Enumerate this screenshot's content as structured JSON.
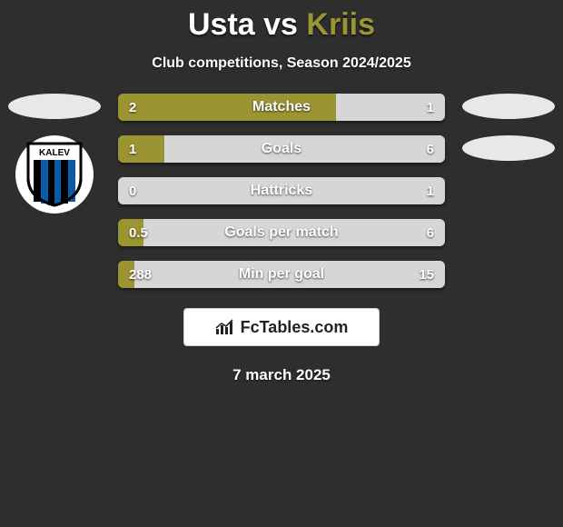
{
  "title": {
    "player1": "Usta",
    "vs": "vs",
    "player2": "Kriis"
  },
  "subtitle": "Club competitions, Season 2024/2025",
  "colors": {
    "player1": "#9b9432",
    "player2": "#d6d6d6",
    "oval_p1": "#e8e8e8",
    "oval_p2": "#e8e8e8",
    "bar_bg": "#9b9432"
  },
  "logo": {
    "text_top": "KALEV"
  },
  "stats": [
    {
      "label": "Matches",
      "v1": "2",
      "v2": "1",
      "pct1": 66.7,
      "pct2": 33.3
    },
    {
      "label": "Goals",
      "v1": "1",
      "v2": "6",
      "pct1": 14.3,
      "pct2": 85.7
    },
    {
      "label": "Hattricks",
      "v1": "0",
      "v2": "1",
      "pct1": 0,
      "pct2": 100
    },
    {
      "label": "Goals per match",
      "v1": "0.5",
      "v2": "6",
      "pct1": 7.7,
      "pct2": 92.3
    },
    {
      "label": "Min per goal",
      "v1": "288",
      "v2": "15",
      "pct1": 5.0,
      "pct2": 95.0
    }
  ],
  "brand": "FcTables.com",
  "date": "7 march 2025"
}
